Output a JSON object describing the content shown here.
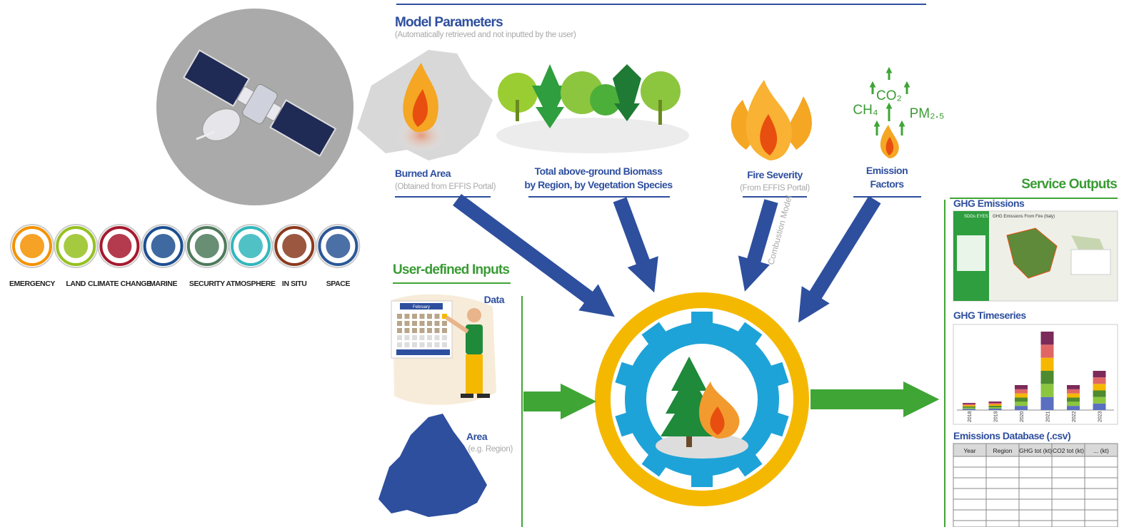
{
  "model_parameters": {
    "title": "Model Parameters",
    "subtitle": "(Automatically retrieved and not inputted by the user)",
    "burned_area": {
      "label": "Burned Area",
      "note": "(Obtained from EFFIS Portal)"
    },
    "biomass": {
      "lines": [
        "Total above-ground Biomass",
        "by Region, by Vegetation Species"
      ]
    },
    "fire_severity": {
      "label": "Fire Severity",
      "note": "(From EFFIS Portal)"
    },
    "emission_factors": {
      "lines": [
        "Emission",
        "Factors"
      ]
    },
    "gases": [
      "CO₂",
      "CH₄",
      "PM₂.₅"
    ]
  },
  "combustion_model": "Combustion Model",
  "user_inputs": {
    "title": "User-defined Inputs",
    "data": {
      "label": "Data",
      "calendar_month": "February"
    },
    "area": {
      "label": "Area",
      "note": "(e.g. Region)"
    }
  },
  "service_outputs": {
    "title": "Service Outputs",
    "ghg_emissions": {
      "label": "GHG Emissions",
      "app_name": "SDGs EYES",
      "map_title": "GHG Emissions From Fire (Italy)"
    },
    "ghg_timeseries": {
      "label": "GHG Timeseries",
      "years": [
        "2018",
        "2019",
        "2020",
        "2021",
        "2022",
        "2023"
      ]
    },
    "database": {
      "label": "Emissions Database (.csv)",
      "columns": [
        "Year",
        "Region",
        "GHG tot (kt)",
        "CO2 tot (kt)",
        "... (kt)"
      ]
    }
  },
  "copernicus_services": [
    "EMERGENCY",
    "LAND",
    "CLIMATE CHANGE",
    "MARINE",
    "SECURITY",
    "ATMOSPHERE",
    "IN SITU",
    "SPACE"
  ]
}
